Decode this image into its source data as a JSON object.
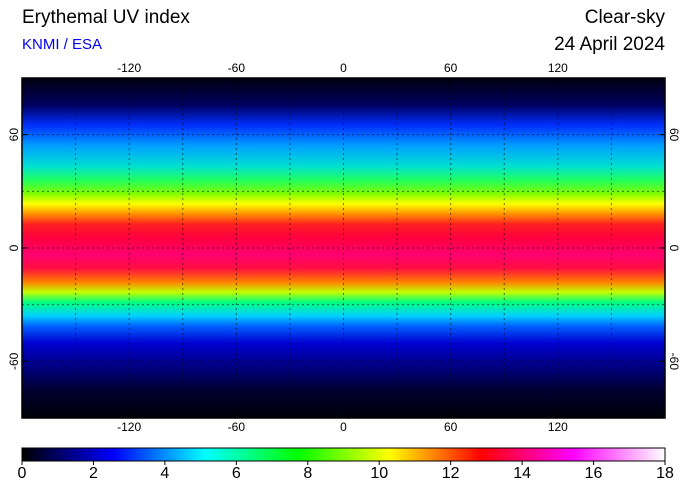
{
  "header": {
    "title": "Erythemal UV index",
    "source": "KNMI / ESA",
    "mode": "Clear-sky",
    "date": "24 April 2024"
  },
  "chart_data": {
    "type": "map",
    "xlim": [
      -180,
      180
    ],
    "ylim": [
      -90,
      90
    ],
    "xticks": [
      -120,
      -60,
      0,
      60,
      120
    ],
    "yticks": [
      -60,
      0,
      60
    ],
    "colorbar": {
      "lim": [
        0,
        18
      ],
      "ticks": [
        0,
        2,
        4,
        6,
        8,
        10,
        12,
        14,
        16,
        18
      ],
      "colors": [
        "#000000",
        "#000080",
        "#0000ff",
        "#0080ff",
        "#00ffff",
        "#00ff80",
        "#00ff00",
        "#80ff00",
        "#ffff00",
        "#ff8000",
        "#ff0000",
        "#ff0080",
        "#ff00ff",
        "#ff80ff",
        "#ffffff"
      ]
    }
  }
}
